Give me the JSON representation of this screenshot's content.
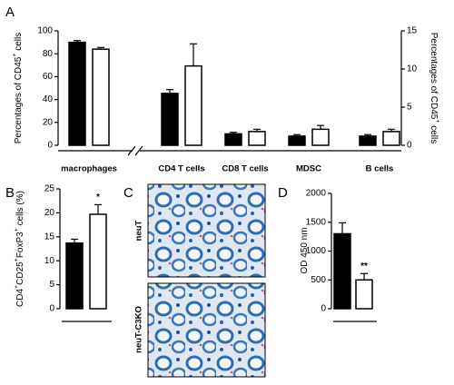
{
  "figure": {
    "panels": [
      "A",
      "B",
      "C",
      "D"
    ],
    "image_labels": [
      "neuT",
      "neuT-C3KO"
    ]
  },
  "chart_data": [
    {
      "type": "bar",
      "categories": [
        "macrophages",
        "CD4 T cells",
        "CD8 T cells",
        "MDSC",
        "B cells"
      ],
      "ylabel": [
        {
          "text": "Percentages of CD45"
        },
        {
          "sup": "+"
        },
        {
          "text": " cells"
        }
      ],
      "y2label": [
        {
          "text": "Percentages of CD45"
        },
        {
          "sup": "+"
        },
        {
          "text": " cells"
        }
      ],
      "ylim": [
        0,
        100
      ],
      "yticks": [
        0,
        20,
        40,
        60,
        80,
        100
      ],
      "y2lim": [
        0,
        15
      ],
      "y2ticks": [
        0,
        5,
        10,
        15
      ],
      "series": [
        {
          "color": "#000000",
          "values": [
            90,
            null,
            null,
            null,
            null
          ],
          "errors": [
            1.5,
            null,
            null,
            null,
            null
          ]
        },
        {
          "color": "#ffffff",
          "values": [
            84,
            null,
            null,
            null,
            null
          ],
          "errors": [
            1.5,
            null,
            null,
            null,
            null
          ]
        },
        {
          "color": "#000000",
          "axis": "y2",
          "values": [
            null,
            6.8,
            1.5,
            1.2,
            1.2
          ],
          "errors": [
            null,
            0.5,
            0.2,
            0.2,
            0.2
          ]
        },
        {
          "color": "#ffffff",
          "axis": "y2",
          "values": [
            null,
            10.4,
            1.8,
            2.1,
            1.8
          ],
          "errors": [
            null,
            2.9,
            0.3,
            0.5,
            0.3
          ]
        }
      ]
    },
    {
      "type": "bar",
      "ylabel": [
        {
          "text": "CD4"
        },
        {
          "sup": "+"
        },
        {
          "text": "CD25"
        },
        {
          "sup": "+"
        },
        {
          "text": "FoxP3"
        },
        {
          "sup": "+"
        },
        {
          "text": " cells (%)"
        }
      ],
      "ylim": [
        0,
        25
      ],
      "yticks": [
        0,
        5,
        10,
        15,
        20,
        25
      ],
      "annotation": "*",
      "series": [
        {
          "color": "#000000",
          "values": [
            13.7
          ],
          "errors": [
            0.8
          ]
        },
        {
          "color": "#ffffff",
          "values": [
            19.7
          ],
          "errors": [
            2.0
          ]
        }
      ]
    },
    {
      "type": "bar",
      "ylabel": [
        {
          "text": "OD 450 nm"
        }
      ],
      "ylim": [
        0,
        2000
      ],
      "yticks": [
        0,
        500,
        1000,
        1500,
        2000
      ],
      "annotation": "**",
      "series": [
        {
          "color": "#000000",
          "values": [
            1300
          ],
          "errors": [
            190
          ]
        },
        {
          "color": "#ffffff",
          "values": [
            500
          ],
          "errors": [
            110
          ]
        }
      ]
    }
  ]
}
